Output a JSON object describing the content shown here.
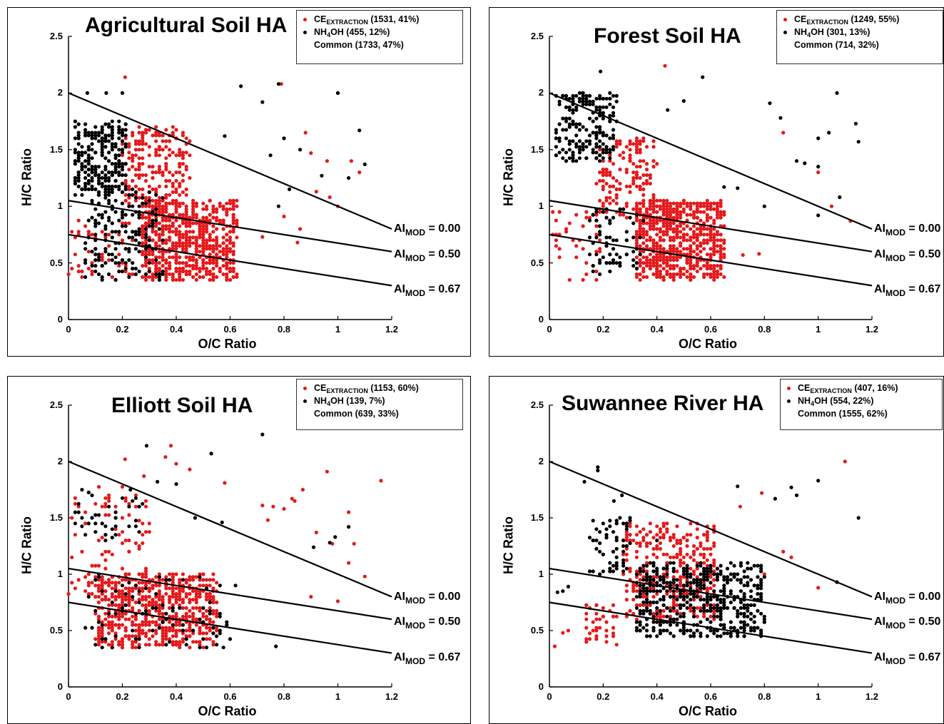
{
  "colors": {
    "ce_extraction": "#e41a1c",
    "nh4oh": "#000000"
  },
  "panels": [
    {
      "title": "Agricultural Soil HA",
      "legend": [
        {
          "label": "CE",
          "sub": "EXTRACTION",
          "suffix": " (1531, 41%)"
        },
        {
          "label": "NH",
          "sub": "4",
          "suffix": "OH (455, 12%)"
        },
        {
          "label": "Common (1733, 47%)"
        }
      ]
    },
    {
      "title": "Forest Soil HA",
      "legend": [
        {
          "label": "CE",
          "sub": "EXTRACTION",
          "suffix": " (1249, 55%)"
        },
        {
          "label": "NH",
          "sub": "4",
          "suffix": "OH (301, 13%)"
        },
        {
          "label": "Common (714, 32%)"
        }
      ]
    },
    {
      "title": "Elliott Soil HA",
      "legend": [
        {
          "label": "CE",
          "sub": "EXTRACTION",
          "suffix": " (1153, 60%)"
        },
        {
          "label": "NH",
          "sub": "4",
          "suffix": "OH (139, 7%)"
        },
        {
          "label": "Common (639, 33%)"
        }
      ]
    },
    {
      "title": "Suwannee River HA",
      "legend": [
        {
          "label": "CE",
          "sub": "EXTRACTION",
          "suffix": " (407, 16%)"
        },
        {
          "label": "NH",
          "sub": "4",
          "suffix": "OH (554, 22%)"
        },
        {
          "label": "Common (1555, 62%)"
        }
      ]
    }
  ],
  "ai_lines": [
    {
      "name": "AI",
      "sub": "MOD",
      "value": " = 0.00"
    },
    {
      "name": "AI",
      "sub": "MOD",
      "value": " = 0.50"
    },
    {
      "name": "AI",
      "sub": "MOD",
      "value": " = 0.67"
    }
  ],
  "chart_data": [
    {
      "type": "scatter",
      "title": "Agricultural Soil HA",
      "xlabel": "O/C Ratio",
      "ylabel": "H/C Ratio",
      "xlim": [
        0,
        1.2
      ],
      "ylim": [
        0,
        2.5
      ],
      "xticks": [
        "0",
        "0.2",
        "0.4",
        "0.6",
        "0.8",
        "1",
        "1.2"
      ],
      "yticks": [
        "0",
        "0.5",
        "1",
        "1.5",
        "2",
        "2.5"
      ],
      "reference_lines": [
        {
          "label": "AI MOD = 0.00",
          "x": [
            0,
            1.2
          ],
          "y": [
            2.0,
            0.8
          ]
        },
        {
          "label": "AI MOD = 0.50",
          "x": [
            0,
            1.2
          ],
          "y": [
            1.05,
            0.6
          ]
        },
        {
          "label": "AI MOD = 0.67",
          "x": [
            0,
            1.2
          ],
          "y": [
            0.75,
            0.3
          ]
        }
      ],
      "series": [
        {
          "name": "CEEXTRACTION (1531, 41%)",
          "color": "#e41a1c",
          "clusters": [
            {
              "x": [
                0.27,
                0.62
              ],
              "y": [
                0.35,
                1.05
              ],
              "count": 700
            },
            {
              "x": [
                0.2,
                0.45
              ],
              "y": [
                1.0,
                1.7
              ],
              "count": 220
            },
            {
              "x": [
                0.0,
                0.25
              ],
              "y": [
                0.35,
                0.9
              ],
              "count": 60
            }
          ],
          "points": [
            [
              0.21,
              2.14
            ],
            [
              0.79,
              2.08
            ],
            [
              1.0,
              2.0
            ],
            [
              0.88,
              1.65
            ],
            [
              0.9,
              1.47
            ],
            [
              0.96,
              1.4
            ],
            [
              1.05,
              1.4
            ],
            [
              1.08,
              1.3
            ],
            [
              0.92,
              1.13
            ],
            [
              0.97,
              1.08
            ],
            [
              1.0,
              1.0
            ],
            [
              0.8,
              0.91
            ],
            [
              0.86,
              0.8
            ],
            [
              0.72,
              0.73
            ],
            [
              0.85,
              0.68
            ]
          ]
        },
        {
          "name": "NH4OH (455, 12%)",
          "color": "#000000",
          "clusters": [
            {
              "x": [
                0.02,
                0.22
              ],
              "y": [
                1.1,
                1.75
              ],
              "count": 250
            },
            {
              "x": [
                0.05,
                0.35
              ],
              "y": [
                0.35,
                1.15
              ],
              "count": 180
            }
          ],
          "points": [
            [
              0.07,
              2.0
            ],
            [
              0.2,
              2.0
            ],
            [
              0.14,
              2.0
            ],
            [
              0.64,
              2.06
            ],
            [
              0.78,
              2.08
            ],
            [
              0.72,
              1.92
            ],
            [
              1.0,
              2.0
            ],
            [
              0.58,
              1.62
            ],
            [
              0.8,
              1.6
            ],
            [
              0.75,
              1.45
            ],
            [
              0.86,
              1.5
            ],
            [
              0.94,
              1.27
            ],
            [
              1.04,
              1.25
            ],
            [
              1.08,
              1.67
            ],
            [
              1.1,
              1.37
            ],
            [
              0.82,
              1.15
            ],
            [
              0.78,
              1.0
            ]
          ]
        }
      ]
    },
    {
      "type": "scatter",
      "title": "Forest Soil HA",
      "xlabel": "O/C Ratio",
      "ylabel": "H/C Ratio",
      "xlim": [
        0,
        1.2
      ],
      "ylim": [
        0,
        2.5
      ],
      "xticks": [
        "0",
        "0.2",
        "0.4",
        "0.6",
        "0.8",
        "1",
        "1.2"
      ],
      "yticks": [
        "0",
        "0.5",
        "1",
        "1.5",
        "2",
        "2.5"
      ],
      "reference_lines": [
        {
          "label": "AI MOD = 0.00",
          "x": [
            0,
            1.2
          ],
          "y": [
            2.0,
            0.8
          ]
        },
        {
          "label": "AI MOD = 0.50",
          "x": [
            0,
            1.2
          ],
          "y": [
            1.05,
            0.6
          ]
        },
        {
          "label": "AI MOD = 0.67",
          "x": [
            0,
            1.2
          ],
          "y": [
            0.75,
            0.3
          ]
        }
      ],
      "series": [
        {
          "name": "CEEXTRACTION (1249, 55%)",
          "color": "#e41a1c",
          "clusters": [
            {
              "x": [
                0.32,
                0.65
              ],
              "y": [
                0.35,
                1.05
              ],
              "count": 700
            },
            {
              "x": [
                0.18,
                0.4
              ],
              "y": [
                0.9,
                1.6
              ],
              "count": 160
            },
            {
              "x": [
                0.0,
                0.2
              ],
              "y": [
                0.35,
                1.0
              ],
              "count": 40
            }
          ],
          "points": [
            [
              0.43,
              2.24
            ],
            [
              0.87,
              1.65
            ],
            [
              1.0,
              1.3
            ],
            [
              1.05,
              1.0
            ],
            [
              1.12,
              0.87
            ],
            [
              0.72,
              0.57
            ],
            [
              0.78,
              0.58
            ]
          ]
        },
        {
          "name": "NH4OH (301, 13%)",
          "color": "#000000",
          "clusters": [
            {
              "x": [
                0.02,
                0.25
              ],
              "y": [
                1.4,
                2.0
              ],
              "count": 200
            },
            {
              "x": [
                0.15,
                0.35
              ],
              "y": [
                0.4,
                1.0
              ],
              "count": 70
            }
          ],
          "points": [
            [
              0.19,
              2.19
            ],
            [
              0.57,
              2.14
            ],
            [
              0.44,
              1.85
            ],
            [
              0.5,
              1.93
            ],
            [
              0.82,
              1.91
            ],
            [
              0.86,
              1.78
            ],
            [
              1.0,
              1.6
            ],
            [
              1.04,
              1.65
            ],
            [
              1.07,
              2.0
            ],
            [
              1.14,
              1.73
            ],
            [
              1.15,
              1.57
            ],
            [
              0.92,
              1.4
            ],
            [
              0.95,
              1.38
            ],
            [
              1.0,
              1.35
            ],
            [
              0.65,
              1.17
            ],
            [
              0.7,
              1.16
            ],
            [
              0.8,
              1.0
            ],
            [
              1.08,
              1.08
            ],
            [
              1.0,
              0.92
            ]
          ]
        }
      ]
    },
    {
      "type": "scatter",
      "title": "Elliott Soil HA",
      "xlabel": "O/C Ratio",
      "ylabel": "H/C Ratio",
      "xlim": [
        0,
        1.2
      ],
      "ylim": [
        0,
        2.5
      ],
      "xticks": [
        "0",
        "0.2",
        "0.4",
        "0.6",
        "0.8",
        "1",
        "1.2"
      ],
      "yticks": [
        "0",
        "0.5",
        "1",
        "1.5",
        "2",
        "2.5"
      ],
      "reference_lines": [
        {
          "label": "AI MOD = 0.00",
          "x": [
            0,
            1.2
          ],
          "y": [
            2.0,
            0.8
          ]
        },
        {
          "label": "AI MOD = 0.50",
          "x": [
            0,
            1.2
          ],
          "y": [
            1.05,
            0.6
          ]
        },
        {
          "label": "AI MOD = 0.67",
          "x": [
            0,
            1.2
          ],
          "y": [
            0.75,
            0.3
          ]
        }
      ],
      "series": [
        {
          "name": "CEEXTRACTION (1153, 60%)",
          "color": "#e41a1c",
          "clusters": [
            {
              "x": [
                0.1,
                0.55
              ],
              "y": [
                0.35,
                1.0
              ],
              "count": 650
            },
            {
              "x": [
                0.0,
                0.3
              ],
              "y": [
                0.8,
                1.8
              ],
              "count": 90
            }
          ],
          "points": [
            [
              0.38,
              2.14
            ],
            [
              0.21,
              2.02
            ],
            [
              0.36,
              2.04
            ],
            [
              0.4,
              1.98
            ],
            [
              0.45,
              1.93
            ],
            [
              0.28,
              1.87
            ],
            [
              0.58,
              1.81
            ],
            [
              0.72,
              1.61
            ],
            [
              0.74,
              1.48
            ],
            [
              0.76,
              1.6
            ],
            [
              0.8,
              1.58
            ],
            [
              0.83,
              1.67
            ],
            [
              0.84,
              1.65
            ],
            [
              0.87,
              1.75
            ],
            [
              0.96,
              1.91
            ],
            [
              1.04,
              1.55
            ],
            [
              1.06,
              1.27
            ],
            [
              1.16,
              1.83
            ],
            [
              0.98,
              1.27
            ],
            [
              0.92,
              1.37
            ],
            [
              1.04,
              1.1
            ],
            [
              1.1,
              0.98
            ],
            [
              0.9,
              0.8
            ],
            [
              1.0,
              0.76
            ]
          ]
        },
        {
          "name": "NH4OH (139, 7%)",
          "color": "#000000",
          "clusters": [
            {
              "x": [
                0.02,
                0.28
              ],
              "y": [
                1.3,
                1.75
              ],
              "count": 40
            },
            {
              "x": [
                0.05,
                0.6
              ],
              "y": [
                0.35,
                1.0
              ],
              "count": 90
            }
          ],
          "points": [
            [
              0.72,
              2.24
            ],
            [
              0.29,
              2.14
            ],
            [
              0.53,
              2.07
            ],
            [
              0.4,
              1.8
            ],
            [
              0.23,
              1.75
            ],
            [
              0.33,
              1.82
            ],
            [
              0.47,
              1.5
            ],
            [
              0.57,
              1.46
            ],
            [
              0.91,
              1.24
            ],
            [
              0.97,
              1.28
            ],
            [
              0.99,
              1.33
            ],
            [
              1.04,
              1.42
            ],
            [
              0.77,
              0.36
            ],
            [
              0.62,
              0.9
            ]
          ]
        }
      ]
    },
    {
      "type": "scatter",
      "title": "Suwannee River HA",
      "xlabel": "O/C Ratio",
      "ylabel": "H/C Ratio",
      "xlim": [
        0,
        1.2
      ],
      "ylim": [
        0,
        2.5
      ],
      "xticks": [
        "0",
        "0.2",
        "0.4",
        "0.6",
        "0.8",
        "1",
        "1.2"
      ],
      "yticks": [
        "0",
        "0.5",
        "1",
        "1.5",
        "2",
        "2.5"
      ],
      "reference_lines": [
        {
          "label": "AI MOD = 0.00",
          "x": [
            0,
            1.2
          ],
          "y": [
            2.0,
            0.8
          ]
        },
        {
          "label": "AI MOD = 0.50",
          "x": [
            0,
            1.2
          ],
          "y": [
            1.05,
            0.6
          ]
        },
        {
          "label": "AI MOD = 0.67",
          "x": [
            0,
            1.2
          ],
          "y": [
            0.75,
            0.3
          ]
        }
      ],
      "series": [
        {
          "name": "CEEXTRACTION (407, 16%)",
          "color": "#e41a1c",
          "clusters": [
            {
              "x": [
                0.28,
                0.62
              ],
              "y": [
                0.6,
                1.45
              ],
              "count": 330
            },
            {
              "x": [
                0.13,
                0.25
              ],
              "y": [
                0.35,
                0.75
              ],
              "count": 40
            }
          ],
          "points": [
            [
              1.1,
              2.0
            ],
            [
              0.79,
              1.72
            ],
            [
              0.71,
              1.6
            ],
            [
              0.87,
              1.2
            ],
            [
              0.9,
              1.15
            ],
            [
              0.8,
              1.0
            ],
            [
              1.0,
              0.88
            ],
            [
              0.02,
              0.36
            ],
            [
              0.05,
              0.48
            ],
            [
              0.07,
              0.5
            ]
          ]
        },
        {
          "name": "NH4OH (554, 22%)",
          "color": "#000000",
          "clusters": [
            {
              "x": [
                0.32,
                0.8
              ],
              "y": [
                0.45,
                1.1
              ],
              "count": 500
            },
            {
              "x": [
                0.15,
                0.3
              ],
              "y": [
                1.0,
                1.5
              ],
              "count": 60
            }
          ],
          "points": [
            [
              0.18,
              1.95
            ],
            [
              0.18,
              1.92
            ],
            [
              0.13,
              1.82
            ],
            [
              0.27,
              1.7
            ],
            [
              0.24,
              1.65
            ],
            [
              0.4,
              1.3
            ],
            [
              0.7,
              1.78
            ],
            [
              0.84,
              1.67
            ],
            [
              0.9,
              1.77
            ],
            [
              0.92,
              1.7
            ],
            [
              1.0,
              1.83
            ],
            [
              1.15,
              1.5
            ],
            [
              1.07,
              0.93
            ],
            [
              0.03,
              0.84
            ],
            [
              0.05,
              0.85
            ],
            [
              0.07,
              0.89
            ]
          ]
        }
      ]
    }
  ]
}
